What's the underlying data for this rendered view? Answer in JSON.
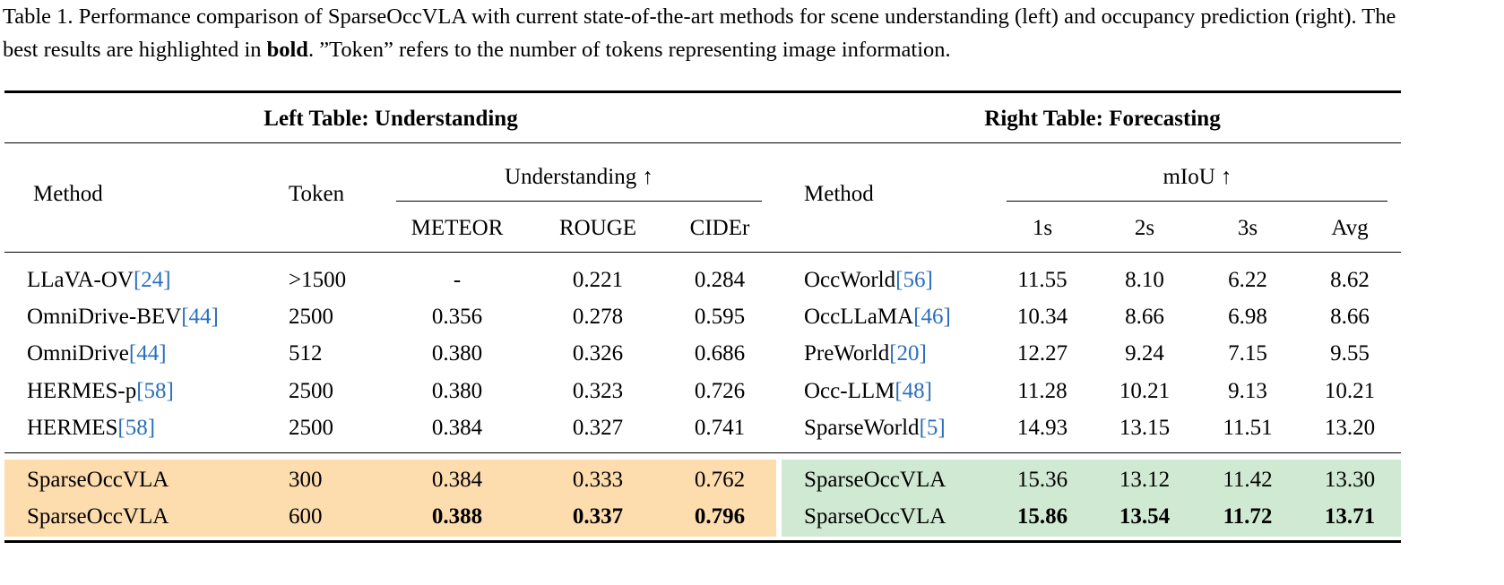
{
  "caption": {
    "label": "Table 1.",
    "before": "Performance comparison of SparseOccVLA with current state-of-the-art methods for scene understanding (left) and occupancy prediction (right). The best results are highlighted in ",
    "bold": "bold",
    "after": ". ”Token” refers to the number of tokens representing image information."
  },
  "left": {
    "title": "Left Table: Understanding",
    "headers": {
      "method": "Method",
      "token": "Token",
      "group": "Understanding ↑",
      "metrics": [
        "METEOR",
        "ROUGE",
        "CIDEr"
      ]
    },
    "rows": [
      {
        "method": "LLaVA-OV",
        "cite": "[24]",
        "token": ">1500",
        "values": [
          "-",
          "0.221",
          "0.284"
        ],
        "bold": [
          false,
          false,
          false
        ]
      },
      {
        "method": "OmniDrive-BEV",
        "cite": "[44]",
        "token": "2500",
        "values": [
          "0.356",
          "0.278",
          "0.595"
        ],
        "bold": [
          false,
          false,
          false
        ]
      },
      {
        "method": "OmniDrive",
        "cite": "[44]",
        "token": "512",
        "values": [
          "0.380",
          "0.326",
          "0.686"
        ],
        "bold": [
          false,
          false,
          false
        ]
      },
      {
        "method": "HERMES-p",
        "cite": "[58]",
        "token": "2500",
        "values": [
          "0.380",
          "0.323",
          "0.726"
        ],
        "bold": [
          false,
          false,
          false
        ]
      },
      {
        "method": "HERMES",
        "cite": "[58]",
        "token": "2500",
        "values": [
          "0.384",
          "0.327",
          "0.741"
        ],
        "bold": [
          false,
          false,
          false
        ]
      }
    ],
    "ours": [
      {
        "method": "SparseOccVLA",
        "token": "300",
        "values": [
          "0.384",
          "0.333",
          "0.762"
        ],
        "bold": [
          false,
          false,
          false
        ]
      },
      {
        "method": "SparseOccVLA",
        "token": "600",
        "values": [
          "0.388",
          "0.337",
          "0.796"
        ],
        "bold": [
          true,
          true,
          true
        ]
      }
    ],
    "highlight": "#fddcae"
  },
  "right": {
    "title": "Right Table: Forecasting",
    "headers": {
      "method": "Method",
      "group": "mIoU ↑",
      "metrics": [
        "1s",
        "2s",
        "3s",
        "Avg"
      ]
    },
    "rows": [
      {
        "method": "OccWorld",
        "cite": "[56]",
        "values": [
          "11.55",
          "8.10",
          "6.22",
          "8.62"
        ],
        "bold": [
          false,
          false,
          false,
          false
        ]
      },
      {
        "method": "OccLLaMA",
        "cite": "[46]",
        "values": [
          "10.34",
          "8.66",
          "6.98",
          "8.66"
        ],
        "bold": [
          false,
          false,
          false,
          false
        ]
      },
      {
        "method": "PreWorld",
        "cite": "[20]",
        "values": [
          "12.27",
          "9.24",
          "7.15",
          "9.55"
        ],
        "bold": [
          false,
          false,
          false,
          false
        ]
      },
      {
        "method": "Occ-LLM",
        "cite": "[48]",
        "values": [
          "11.28",
          "10.21",
          "9.13",
          "10.21"
        ],
        "bold": [
          false,
          false,
          false,
          false
        ]
      },
      {
        "method": "SparseWorld",
        "cite": "[5]",
        "values": [
          "14.93",
          "13.15",
          "11.51",
          "13.20"
        ],
        "bold": [
          false,
          false,
          false,
          false
        ]
      }
    ],
    "ours": [
      {
        "method": "SparseOccVLA",
        "values": [
          "15.36",
          "13.12",
          "11.42",
          "13.30"
        ],
        "bold": [
          false,
          false,
          false,
          false
        ]
      },
      {
        "method": "SparseOccVLA",
        "values": [
          "15.86",
          "13.54",
          "11.72",
          "13.71"
        ],
        "bold": [
          true,
          true,
          true,
          true
        ]
      }
    ],
    "highlight": "#cfe9d2"
  }
}
